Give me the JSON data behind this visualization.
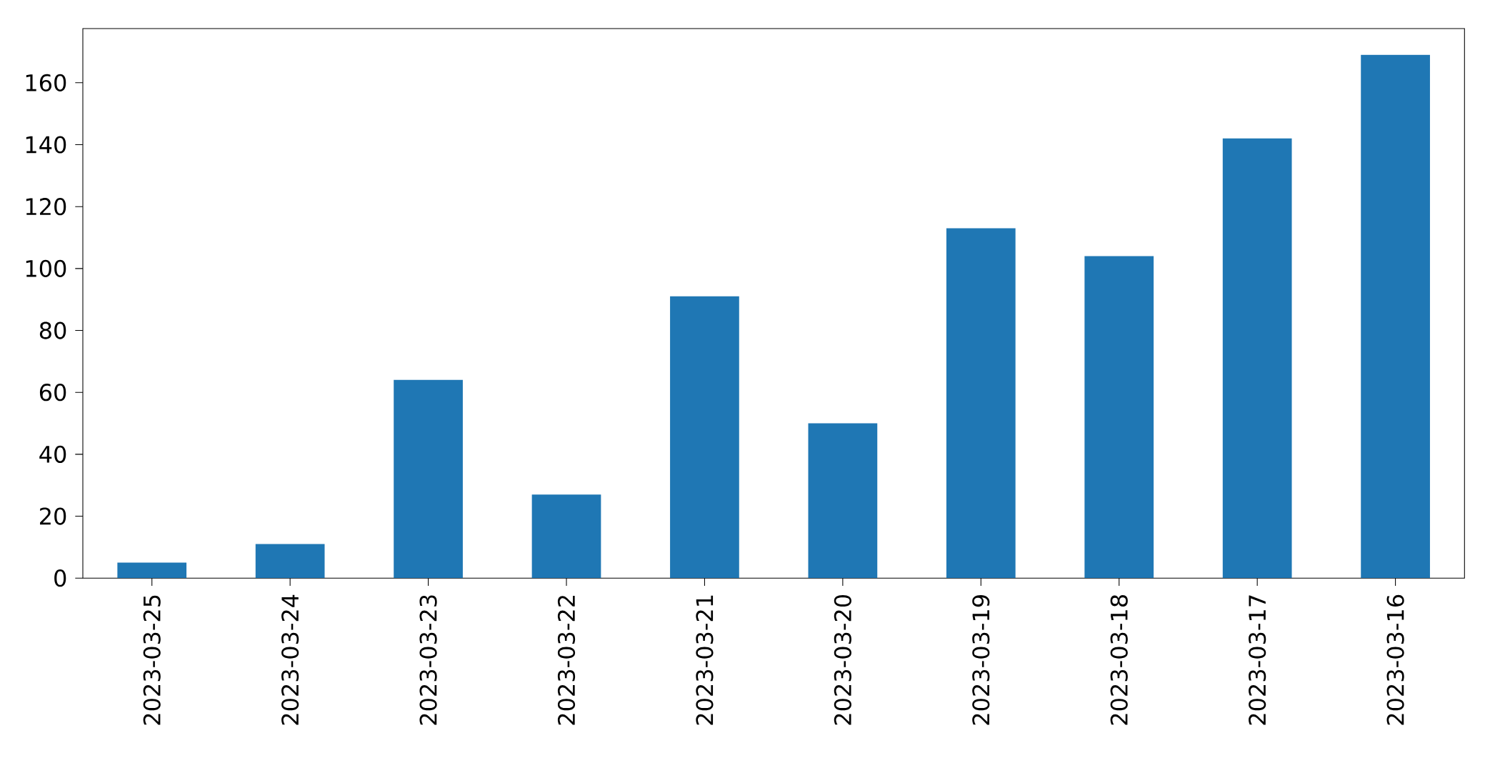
{
  "chart_data": {
    "type": "bar",
    "categories": [
      "2023-03-25",
      "2023-03-24",
      "2023-03-23",
      "2023-03-22",
      "2023-03-21",
      "2023-03-20",
      "2023-03-19",
      "2023-03-18",
      "2023-03-17",
      "2023-03-16"
    ],
    "values": [
      5,
      11,
      64,
      27,
      91,
      50,
      113,
      104,
      142,
      169
    ],
    "color": "#1f77b4",
    "ylim": [
      0,
      177.5
    ],
    "yticks": [
      0,
      20,
      40,
      60,
      80,
      100,
      120,
      140,
      160
    ]
  }
}
